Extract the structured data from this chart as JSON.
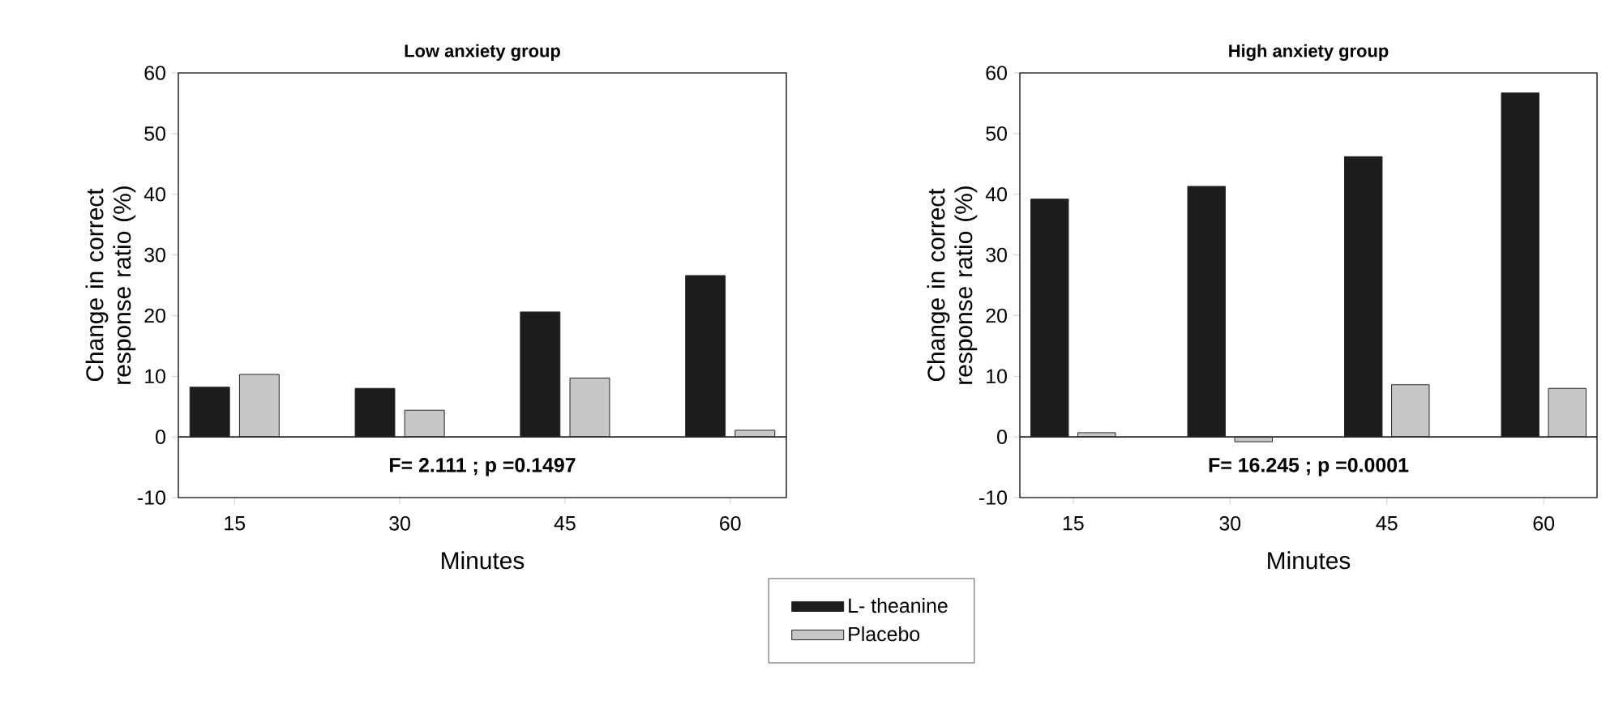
{
  "chart_data": [
    {
      "type": "bar",
      "title": "Low anxiety group",
      "xlabel": "Minutes",
      "ylabel": "Change in correct response ratio (%)",
      "categories": [
        "15",
        "30",
        "45",
        "60"
      ],
      "series": [
        {
          "name": "L- theanine",
          "color": "#1c1c1c",
          "values": [
            8.2,
            8.0,
            20.6,
            26.6
          ]
        },
        {
          "name": "Placebo",
          "color": "#c6c7c9",
          "values": [
            10.3,
            4.4,
            9.7,
            1.1
          ]
        }
      ],
      "ylim": [
        -10,
        60
      ],
      "yticks": [
        -10,
        0,
        10,
        20,
        30,
        40,
        50,
        60
      ],
      "ref_lines": [
        {
          "axis": "y",
          "value": 0
        }
      ],
      "annotations": [
        "F= 2.111 ; p =0.1497"
      ],
      "legend": "bottom",
      "grid": false
    },
    {
      "type": "bar",
      "title": "High anxiety group",
      "xlabel": "Minutes",
      "ylabel": "Change in correct response ratio (%)",
      "categories": [
        "15",
        "30",
        "45",
        "60"
      ],
      "series": [
        {
          "color": "#1c1c1c",
          "values": [
            39.2,
            41.3,
            46.2,
            56.7
          ]
        },
        {
          "color": "#c6c7c9",
          "values": [
            0.7,
            -0.8,
            8.6,
            8.0
          ]
        }
      ],
      "ylim": [
        -10,
        60
      ],
      "yticks": [
        -10,
        0,
        10,
        20,
        30,
        40,
        50,
        60
      ],
      "ref_lines": [
        {
          "axis": "y",
          "value": 0
        }
      ],
      "annotations": [
        "F= 16.245 ; p =0.0001"
      ],
      "legend": false,
      "grid": false
    }
  ]
}
